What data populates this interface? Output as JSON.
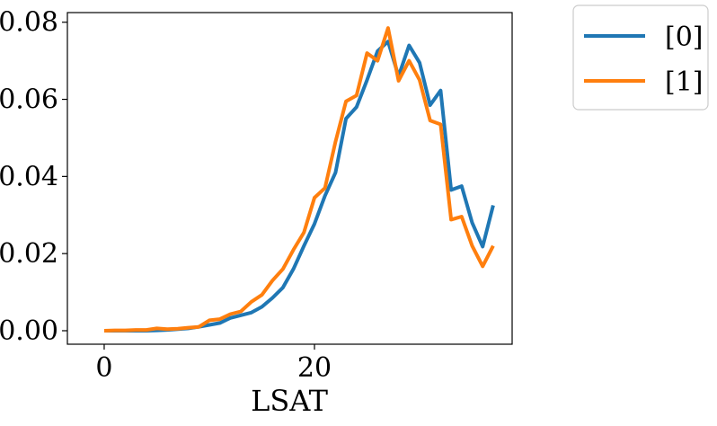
{
  "chart_data": {
    "type": "line",
    "title": "",
    "xlabel": "LSAT",
    "ylabel": "",
    "xlim": [
      -3.5,
      38.8
    ],
    "ylim": [
      -0.0035,
      0.0825
    ],
    "x_ticks": [
      0,
      20
    ],
    "x_tick_labels": [
      "0",
      "20"
    ],
    "y_ticks": [
      0.0,
      0.02,
      0.04,
      0.06,
      0.08
    ],
    "y_tick_labels": [
      "0.00",
      "0.02",
      "0.04",
      "0.06",
      "0.08"
    ],
    "grid": false,
    "legend_position": "outside-top-right",
    "x": [
      0,
      1,
      2,
      3,
      4,
      5,
      6,
      7,
      8,
      9,
      10,
      11,
      12,
      13,
      14,
      15,
      16,
      17,
      18,
      19,
      20,
      21,
      22,
      23,
      24,
      25,
      26,
      27,
      28,
      29,
      30,
      31,
      32,
      33,
      34,
      35,
      36,
      37
    ],
    "series": [
      {
        "name": "[0]",
        "color": "#1f77b4",
        "values": [
          0.0,
          0.0,
          0.0,
          0.0,
          0.0,
          0.0001,
          0.0002,
          0.0004,
          0.0006,
          0.001,
          0.0015,
          0.002,
          0.0033,
          0.004,
          0.0047,
          0.0062,
          0.0085,
          0.0112,
          0.016,
          0.022,
          0.0277,
          0.035,
          0.041,
          0.055,
          0.058,
          0.065,
          0.0725,
          0.075,
          0.066,
          0.074,
          0.0695,
          0.0585,
          0.0623,
          0.0365,
          0.0375,
          0.028,
          0.0218,
          0.0325
        ]
      },
      {
        "name": "[1]",
        "color": "#ff7f0e",
        "values": [
          0.0,
          0.0001,
          0.0001,
          0.0002,
          0.0002,
          0.0006,
          0.0004,
          0.0005,
          0.0008,
          0.001,
          0.0027,
          0.003,
          0.0043,
          0.005,
          0.0075,
          0.0093,
          0.013,
          0.016,
          0.021,
          0.0255,
          0.0345,
          0.037,
          0.049,
          0.0595,
          0.061,
          0.072,
          0.07,
          0.0785,
          0.0648,
          0.07,
          0.065,
          0.0545,
          0.0535,
          0.0288,
          0.0296,
          0.022,
          0.0167,
          0.022
        ]
      }
    ]
  }
}
